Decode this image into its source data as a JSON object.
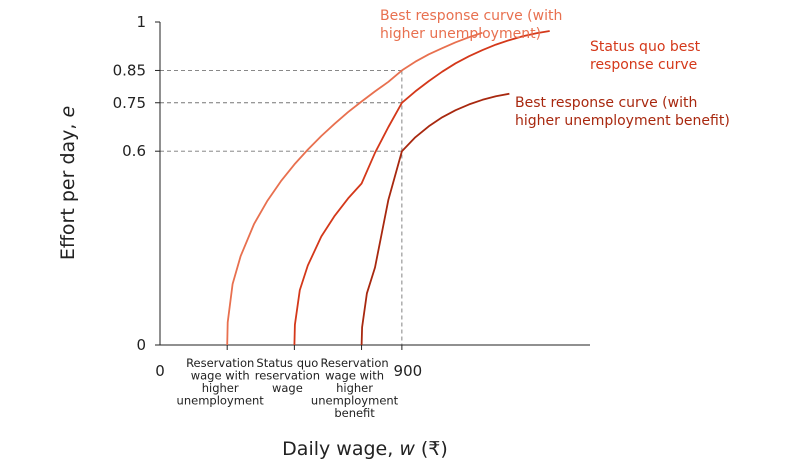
{
  "chart_data": {
    "type": "line",
    "xlabel": "Daily wage, ",
    "xlabel_var": "w",
    "xlabel_unit": " (₹)",
    "ylabel": "Effort per day, ",
    "ylabel_var": "e",
    "x_ticks": [
      {
        "value": 0,
        "label": "0"
      },
      {
        "value": 900,
        "label": "900"
      }
    ],
    "x_category_ticks": [
      {
        "value": 250,
        "lines": [
          "Reservation",
          "wage with",
          "higher",
          "unemployment"
        ]
      },
      {
        "value": 500,
        "lines": [
          "Status quo",
          "reservation",
          "wage"
        ]
      },
      {
        "value": 750,
        "lines": [
          "Reservation",
          "wage with",
          "higher",
          "unemployment",
          "benefit"
        ]
      }
    ],
    "y_ticks": [
      {
        "value": 0,
        "label": "0"
      },
      {
        "value": 0.6,
        "label": "0.6"
      },
      {
        "value": 0.75,
        "label": "0.75"
      },
      {
        "value": 0.85,
        "label": "0.85"
      },
      {
        "value": 1,
        "label": "1"
      }
    ],
    "xlim": [
      0,
      1600
    ],
    "ylim": [
      0,
      1
    ],
    "reference_x": 900,
    "reference_levels": [
      0.85,
      0.75,
      0.6
    ],
    "series": [
      {
        "name": "Best response curve (with higher unemployment)",
        "label_lines": [
          "Best response curve (with",
          "higher unemployment)"
        ],
        "color": "#e8704f",
        "x": [
          250,
          252,
          270,
          300,
          350,
          400,
          450,
          500,
          550,
          600,
          650,
          700,
          750,
          800,
          850,
          900,
          950,
          1000,
          1050,
          1100,
          1150,
          1200
        ],
        "y": [
          0,
          0.07,
          0.189,
          0.275,
          0.375,
          0.447,
          0.507,
          0.559,
          0.605,
          0.647,
          0.685,
          0.721,
          0.754,
          0.785,
          0.815,
          0.85,
          0.877,
          0.9,
          0.919,
          0.937,
          0.953,
          0.967
        ]
      },
      {
        "name": "Status quo best response curve",
        "label_lines": [
          "Status quo best",
          "response curve"
        ],
        "color": "#d4381a",
        "x": [
          500,
          502,
          520,
          550,
          600,
          650,
          700,
          750,
          800,
          850,
          900,
          950,
          1000,
          1050,
          1100,
          1150,
          1200,
          1250,
          1300,
          1350,
          1400,
          1450
        ],
        "y": [
          0,
          0.063,
          0.17,
          0.246,
          0.336,
          0.4,
          0.454,
          0.5,
          0.595,
          0.675,
          0.75,
          0.785,
          0.817,
          0.846,
          0.872,
          0.894,
          0.913,
          0.93,
          0.944,
          0.956,
          0.965,
          0.972
        ]
      },
      {
        "name": "Best response curve (with higher unemployment benefit)",
        "label_lines": [
          "Best response curve (with",
          "higher unemployment benefit)"
        ],
        "color": "#a8280f",
        "x": [
          750,
          752,
          770,
          800,
          850,
          900,
          950,
          1000,
          1050,
          1100,
          1150,
          1200,
          1250,
          1300
        ],
        "y": [
          0,
          0.055,
          0.16,
          0.24,
          0.45,
          0.6,
          0.643,
          0.677,
          0.705,
          0.727,
          0.745,
          0.759,
          0.77,
          0.778
        ]
      }
    ]
  }
}
